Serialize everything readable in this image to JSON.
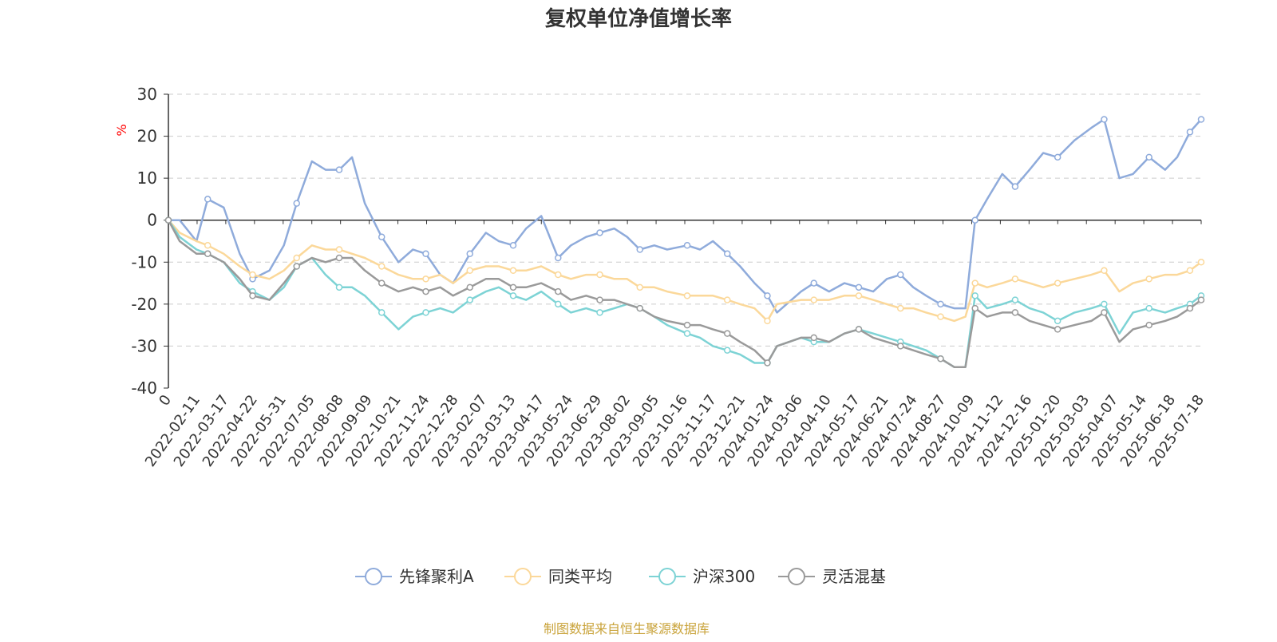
{
  "chart_data": {
    "type": "line",
    "title": "复权单位净值增长率",
    "ylabel": "%",
    "ylim": [
      -40,
      30
    ],
    "yticks": [
      30,
      20,
      10,
      0,
      -10,
      -20,
      -30,
      -40
    ],
    "x_start_label": "0",
    "x_tick_labels": [
      "2022-02-11",
      "2022-03-17",
      "2022-04-22",
      "2022-05-31",
      "2022-07-05",
      "2022-08-08",
      "2022-09-09",
      "2022-10-21",
      "2022-11-24",
      "2022-12-28",
      "2023-02-07",
      "2023-03-13",
      "2023-04-17",
      "2023-05-24",
      "2023-06-29",
      "2023-08-02",
      "2023-09-05",
      "2023-10-16",
      "2023-11-17",
      "2023-12-21",
      "2024-01-24",
      "2024-03-06",
      "2024-04-10",
      "2024-05-17",
      "2024-06-21",
      "2024-07-24",
      "2024-08-27",
      "2024-10-09",
      "2024-11-12",
      "2024-12-16",
      "2025-01-20",
      "2025-03-03",
      "2025-04-07",
      "2025-05-14",
      "2025-06-18",
      "2025-07-18"
    ],
    "x": [
      "2022-01-07",
      "2022-01-21",
      "2022-02-11",
      "2022-02-25",
      "2022-03-17",
      "2022-04-06",
      "2022-04-22",
      "2022-05-13",
      "2022-05-31",
      "2022-06-16",
      "2022-07-05",
      "2022-07-22",
      "2022-08-08",
      "2022-08-24",
      "2022-09-09",
      "2022-09-30",
      "2022-10-21",
      "2022-11-08",
      "2022-11-24",
      "2022-12-12",
      "2022-12-28",
      "2023-01-18",
      "2023-02-07",
      "2023-02-23",
      "2023-03-13",
      "2023-03-29",
      "2023-04-17",
      "2023-05-08",
      "2023-05-24",
      "2023-06-12",
      "2023-06-29",
      "2023-07-17",
      "2023-08-02",
      "2023-08-18",
      "2023-09-05",
      "2023-09-21",
      "2023-10-16",
      "2023-11-01",
      "2023-11-17",
      "2023-12-05",
      "2023-12-21",
      "2024-01-08",
      "2024-01-24",
      "2024-02-05",
      "2024-03-06",
      "2024-03-22",
      "2024-04-10",
      "2024-04-29",
      "2024-05-17",
      "2024-06-04",
      "2024-06-21",
      "2024-07-08",
      "2024-07-24",
      "2024-08-09",
      "2024-08-27",
      "2024-09-13",
      "2024-09-27",
      "2024-10-09",
      "2024-10-24",
      "2024-11-12",
      "2024-11-28",
      "2024-12-16",
      "2025-01-02",
      "2025-01-20",
      "2025-02-10",
      "2025-03-03",
      "2025-03-19",
      "2025-04-07",
      "2025-04-24",
      "2025-05-14",
      "2025-06-03",
      "2025-06-18",
      "2025-07-04",
      "2025-07-18"
    ],
    "series": [
      {
        "name": "先锋聚利A",
        "color": "#8fabdb",
        "values": [
          0,
          0,
          -5,
          5,
          3,
          -8,
          -14,
          -12,
          -6,
          4,
          14,
          12,
          12,
          15,
          4,
          -4,
          -10,
          -7,
          -8,
          -13,
          -15,
          -8,
          -3,
          -5,
          -6,
          -2,
          1,
          -9,
          -6,
          -4,
          -3,
          -2,
          -4,
          -7,
          -6,
          -7,
          -6,
          -7,
          -5,
          -8,
          -11,
          -15,
          -18,
          -22,
          -17,
          -15,
          -17,
          -15,
          -16,
          -17,
          -14,
          -13,
          -16,
          -18,
          -20,
          -21,
          -21,
          0,
          5,
          11,
          8,
          12,
          16,
          15,
          19,
          22,
          24,
          10,
          11,
          15,
          12,
          15,
          21,
          24
        ]
      },
      {
        "name": "同类平均",
        "color": "#fbd89a",
        "values": [
          0,
          -3,
          -5,
          -6,
          -8,
          -11,
          -13,
          -14,
          -12,
          -9,
          -6,
          -7,
          -7,
          -8,
          -9,
          -11,
          -13,
          -14,
          -14,
          -13,
          -15,
          -12,
          -11,
          -11,
          -12,
          -12,
          -11,
          -13,
          -14,
          -13,
          -13,
          -14,
          -14,
          -16,
          -16,
          -17,
          -18,
          -18,
          -18,
          -19,
          -20,
          -21,
          -24,
          -20,
          -19,
          -19,
          -19,
          -18,
          -18,
          -19,
          -20,
          -21,
          -21,
          -22,
          -23,
          -24,
          -23,
          -15,
          -16,
          -15,
          -14,
          -15,
          -16,
          -15,
          -14,
          -13,
          -12,
          -17,
          -15,
          -14,
          -13,
          -13,
          -12,
          -10
        ]
      },
      {
        "name": "沪深300",
        "color": "#7dd3d5",
        "values": [
          0,
          -4,
          -7,
          -8,
          -10,
          -15,
          -17,
          -19,
          -16,
          -11,
          -9,
          -13,
          -16,
          -16,
          -18,
          -22,
          -26,
          -23,
          -22,
          -21,
          -22,
          -19,
          -17,
          -16,
          -18,
          -19,
          -17,
          -20,
          -22,
          -21,
          -22,
          -21,
          -20,
          -21,
          -23,
          -25,
          -27,
          -28,
          -30,
          -31,
          -32,
          -34,
          -34,
          -30,
          -28,
          -29,
          -29,
          -27,
          -26,
          -27,
          -28,
          -29,
          -30,
          -31,
          -33,
          -35,
          -35,
          -18,
          -21,
          -20,
          -19,
          -21,
          -22,
          -24,
          -22,
          -21,
          -20,
          -27,
          -22,
          -21,
          -22,
          -21,
          -20,
          -18
        ]
      },
      {
        "name": "灵活混基",
        "color": "#9a9a9a",
        "values": [
          0,
          -5,
          -8,
          -8,
          -10,
          -14,
          -18,
          -19,
          -15,
          -11,
          -9,
          -10,
          -9,
          -9,
          -12,
          -15,
          -17,
          -16,
          -17,
          -16,
          -18,
          -16,
          -14,
          -14,
          -16,
          -16,
          -15,
          -17,
          -19,
          -18,
          -19,
          -19,
          -20,
          -21,
          -23,
          -24,
          -25,
          -25,
          -26,
          -27,
          -29,
          -31,
          -34,
          -30,
          -28,
          -28,
          -29,
          -27,
          -26,
          -28,
          -29,
          -30,
          -31,
          -32,
          -33,
          -35,
          -35,
          -21,
          -23,
          -22,
          -22,
          -24,
          -25,
          -26,
          -25,
          -24,
          -22,
          -29,
          -26,
          -25,
          -24,
          -23,
          -21,
          -19
        ]
      }
    ],
    "legend_position": "bottom",
    "grid": true
  },
  "footer": {
    "source": "制图数据来自恒生聚源数据库"
  }
}
